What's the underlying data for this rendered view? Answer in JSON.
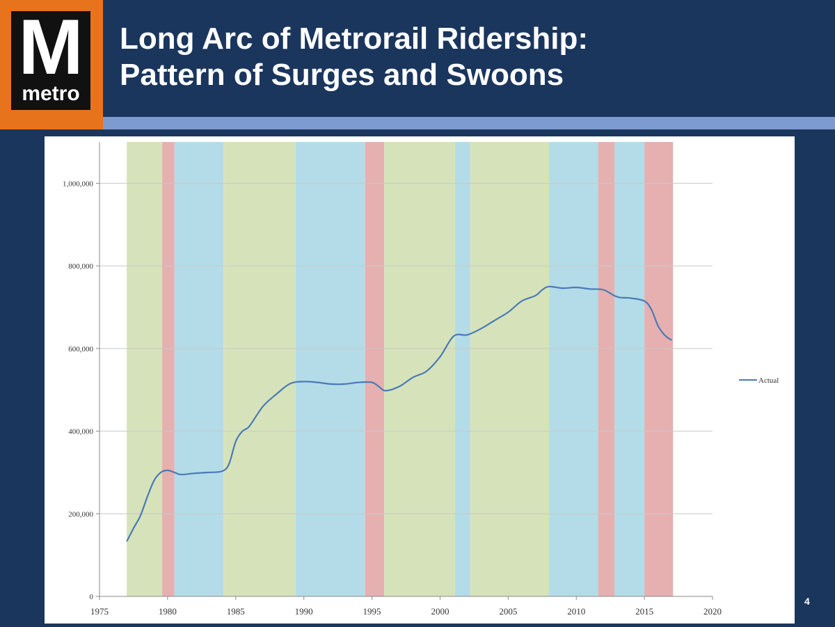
{
  "header": {
    "title_line1": "Long Arc of Metrorail Ridership:",
    "title_line2": "Pattern of Surges and Swoons",
    "logo_letter": "M",
    "logo_word": "metro",
    "page_number": "4"
  },
  "colors": {
    "background": "#1b365d",
    "logo_orange": "#e8731d",
    "stripe": "#7e9bcf",
    "band_green": "#d6e3ba",
    "band_blue": "#b4dbe8",
    "band_red": "#e6b0b0",
    "line": "#4a7ab5"
  },
  "chart_data": {
    "type": "line",
    "title": "",
    "xlabel": "",
    "ylabel": "",
    "xlim": [
      1975,
      2020
    ],
    "ylim": [
      0,
      1100000
    ],
    "x_ticks": [
      "1975",
      "1980",
      "1985",
      "1990",
      "1995",
      "2000",
      "2005",
      "2010",
      "2015",
      "2020"
    ],
    "y_ticks": [
      "0",
      "200,000",
      "400,000",
      "600,000",
      "800,000",
      "1,000,000"
    ],
    "y_tick_values": [
      0,
      200000,
      400000,
      600000,
      800000,
      1000000
    ],
    "grid": "horizontal",
    "legend_position": "right",
    "series": [
      {
        "name": "Actual",
        "x": [
          1977,
          1977.5,
          1978,
          1978.5,
          1979,
          1979.5,
          1980,
          1980.5,
          1981,
          1982,
          1983,
          1984,
          1984.5,
          1985,
          1985.5,
          1986,
          1987,
          1988,
          1989,
          1990,
          1991,
          1992,
          1993,
          1994,
          1995,
          1995.5,
          1996,
          1997,
          1998,
          1999,
          2000,
          2001,
          2002,
          2003,
          2004,
          2005,
          2006,
          2007,
          2007.5,
          2008,
          2009,
          2010,
          2011,
          2012,
          2013,
          2014,
          2015,
          2015.5,
          2016,
          2016.5,
          2017
        ],
        "y": [
          133000,
          165000,
          195000,
          240000,
          280000,
          300000,
          305000,
          300000,
          295000,
          298000,
          300000,
          303000,
          320000,
          375000,
          400000,
          412000,
          460000,
          490000,
          515000,
          520000,
          518000,
          514000,
          514000,
          518000,
          518000,
          508000,
          498000,
          508000,
          530000,
          545000,
          580000,
          630000,
          633000,
          648000,
          668000,
          688000,
          715000,
          728000,
          742000,
          750000,
          746000,
          748000,
          744000,
          742000,
          725000,
          722000,
          715000,
          695000,
          655000,
          632000,
          620000
        ]
      }
    ],
    "bands": [
      {
        "start": 1977,
        "end": 1979.6,
        "phase": "surge",
        "color": "green"
      },
      {
        "start": 1979.6,
        "end": 1980.5,
        "phase": "swoon",
        "color": "red"
      },
      {
        "start": 1980.5,
        "end": 1984.1,
        "phase": "plateau",
        "color": "blue"
      },
      {
        "start": 1984.1,
        "end": 1989.4,
        "phase": "surge",
        "color": "green"
      },
      {
        "start": 1989.4,
        "end": 1994.5,
        "phase": "plateau",
        "color": "blue"
      },
      {
        "start": 1994.5,
        "end": 1995.9,
        "phase": "swoon",
        "color": "red"
      },
      {
        "start": 1995.9,
        "end": 2001.1,
        "phase": "surge",
        "color": "green"
      },
      {
        "start": 2001.1,
        "end": 2002.2,
        "phase": "plateau",
        "color": "blue"
      },
      {
        "start": 2002.2,
        "end": 2008.0,
        "phase": "surge",
        "color": "green"
      },
      {
        "start": 2008.0,
        "end": 2011.6,
        "phase": "plateau",
        "color": "blue"
      },
      {
        "start": 2011.6,
        "end": 2012.8,
        "phase": "swoon",
        "color": "red"
      },
      {
        "start": 2012.8,
        "end": 2015.0,
        "phase": "plateau",
        "color": "blue"
      },
      {
        "start": 2015.0,
        "end": 2017.1,
        "phase": "swoon",
        "color": "red"
      }
    ]
  }
}
